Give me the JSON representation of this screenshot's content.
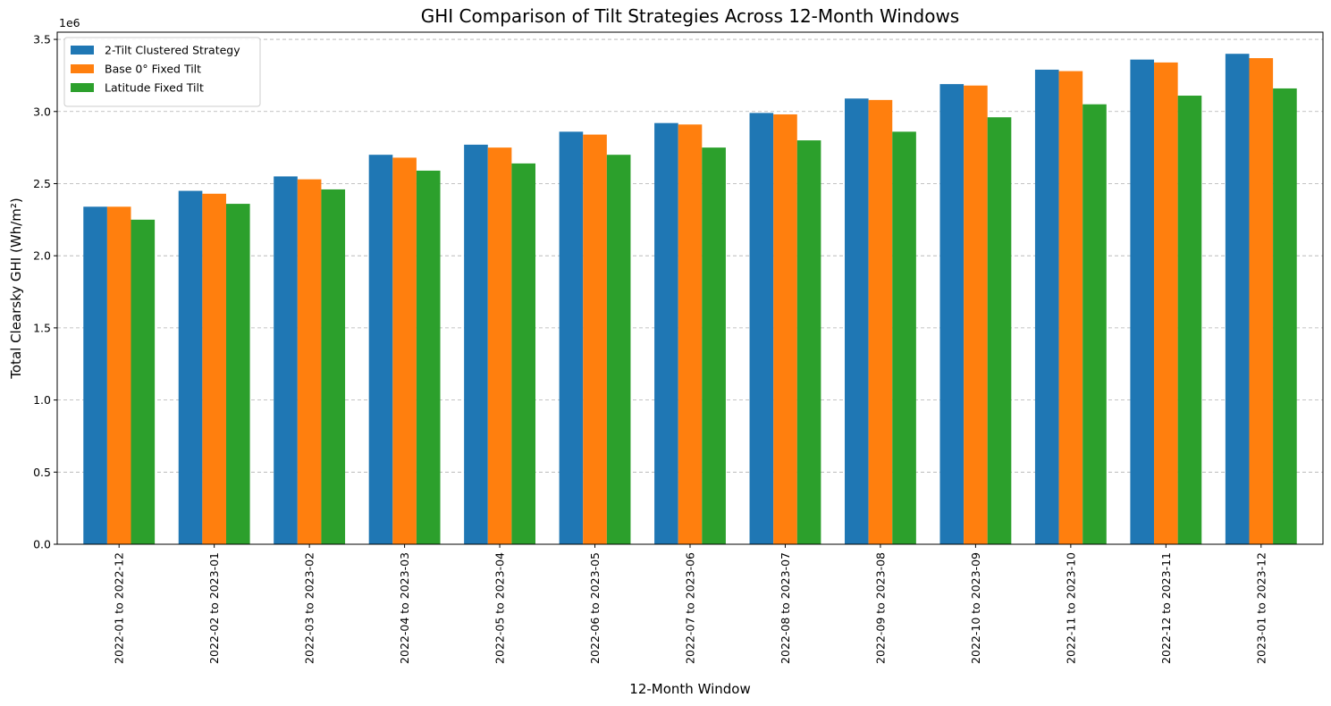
{
  "chart_data": {
    "type": "bar",
    "title": "GHI Comparison of Tilt Strategies Across 12-Month Windows",
    "xlabel": "12-Month Window",
    "ylabel": "Total Clearsky GHI (Wh/m²)",
    "y_offset_label": "1e6",
    "ylim": [
      0,
      3.55
    ],
    "yticks": [
      "0.0",
      "0.5",
      "1.0",
      "1.5",
      "2.0",
      "2.5",
      "3.0",
      "3.5"
    ],
    "grid": "horizontal dashed",
    "legend_position": "top-left",
    "categories": [
      "2022-01 to 2022-12",
      "2022-02 to 2023-01",
      "2022-03 to 2023-02",
      "2022-04 to 2023-03",
      "2022-05 to 2023-04",
      "2022-06 to 2023-05",
      "2022-07 to 2023-06",
      "2022-08 to 2023-07",
      "2022-09 to 2023-08",
      "2022-10 to 2023-09",
      "2022-11 to 2023-10",
      "2022-12 to 2023-11",
      "2023-01 to 2023-12"
    ],
    "series": [
      {
        "name": "2-Tilt Clustered Strategy",
        "color": "#1f77b4",
        "values": [
          2.34,
          2.45,
          2.55,
          2.7,
          2.77,
          2.86,
          2.92,
          2.99,
          3.09,
          3.19,
          3.29,
          3.36,
          3.4
        ]
      },
      {
        "name": "Base 0° Fixed Tilt",
        "color": "#ff7f0e",
        "values": [
          2.34,
          2.43,
          2.53,
          2.68,
          2.75,
          2.84,
          2.91,
          2.98,
          3.08,
          3.18,
          3.28,
          3.34,
          3.37
        ]
      },
      {
        "name": "Latitude Fixed Tilt",
        "color": "#2ca02c",
        "values": [
          2.25,
          2.36,
          2.46,
          2.59,
          2.64,
          2.7,
          2.75,
          2.8,
          2.86,
          2.96,
          3.05,
          3.11,
          3.16
        ]
      }
    ]
  }
}
